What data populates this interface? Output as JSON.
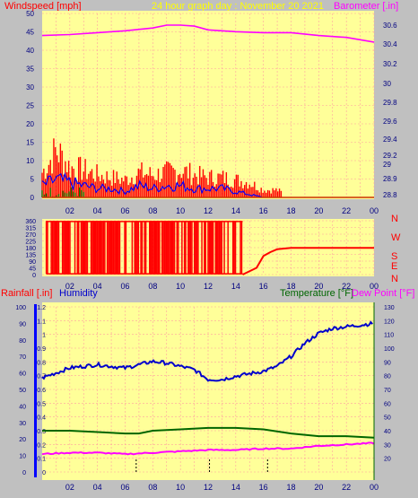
{
  "header": {
    "top_left": "Windspeed [mph]",
    "top_center": "24 hour graph day : November 20 2021",
    "top_right": "Barometer [.in]",
    "rain_label": "Rainfall [.in]",
    "humidity_label": "Humidity",
    "temp_label": "Temperature [°F]",
    "dew_label": "Dew Point [°F]"
  },
  "colors": {
    "plot_bg": "#ffff99",
    "frame_bg": "#c0c0c0",
    "grid": "#ffa0a0",
    "wind": "#ff0000",
    "gust": "#0000ff",
    "wind_green": "#008000",
    "barometer": "#ff00ff",
    "humidity": "#0000cc",
    "temperature": "#006600",
    "dewpoint": "#ff00ff",
    "rain": "#000000",
    "center_title": "#ffff00"
  },
  "x_axis": {
    "ticks": [
      "02",
      "04",
      "06",
      "08",
      "10",
      "12",
      "14",
      "16",
      "18",
      "20",
      "22",
      "00"
    ]
  },
  "chart_data": [
    {
      "type": "line",
      "name": "wind-barometer",
      "title": "24 hour graph day : November 20 2021",
      "x_range": [
        0,
        24
      ],
      "y_left": {
        "label": "Windspeed [mph]",
        "range": [
          0,
          50
        ],
        "ticks": [
          "0",
          "5",
          "10",
          "15",
          "20",
          "25",
          "30",
          "35",
          "40",
          "45",
          "50"
        ]
      },
      "y_right": {
        "label": "Barometer [.in]",
        "range": [
          28.8,
          30.8
        ],
        "ticks": [
          "28.8",
          "28.9",
          "29",
          "29.2",
          "29.4",
          "29.6",
          "29.8",
          "30",
          "30.2",
          "30.4",
          "30.6"
        ]
      },
      "series": [
        {
          "name": "Barometer",
          "axis": "right",
          "x": [
            0,
            2,
            4,
            6,
            8,
            9,
            10,
            11,
            12,
            14,
            16,
            18,
            20,
            22,
            24
          ],
          "y": [
            30.49,
            30.5,
            30.52,
            30.54,
            30.57,
            30.6,
            30.62,
            30.59,
            30.55,
            30.53,
            30.52,
            30.52,
            30.49,
            30.47,
            30.42
          ]
        },
        {
          "name": "Windspeed",
          "axis": "left",
          "x": [
            0,
            0.5,
            1,
            1.5,
            2,
            3,
            4,
            5,
            6,
            7,
            8,
            9,
            10,
            11,
            12,
            13,
            14,
            15,
            16,
            17,
            18,
            20,
            22,
            24
          ],
          "y": [
            10,
            14,
            19,
            16,
            12,
            11,
            9,
            8,
            7,
            10,
            9,
            10,
            11,
            9,
            8,
            8,
            7,
            6,
            3,
            3,
            0,
            0,
            0,
            0
          ]
        },
        {
          "name": "Gust",
          "axis": "left",
          "x": [
            0,
            1,
            2,
            3,
            4,
            5,
            6,
            7,
            8,
            9,
            10,
            11,
            12,
            13,
            14,
            15,
            16,
            18,
            24
          ],
          "y": [
            4,
            6,
            5,
            4,
            3,
            3,
            2,
            4,
            3,
            4,
            4,
            3,
            3,
            3,
            2,
            1,
            0,
            0,
            0
          ]
        }
      ]
    },
    {
      "type": "line",
      "name": "wind-direction",
      "x_range": [
        0,
        24
      ],
      "y_left": {
        "range": [
          0,
          360
        ],
        "ticks": [
          "0",
          "45",
          "90",
          "135",
          "180",
          "225",
          "270",
          "315",
          "360"
        ]
      },
      "y_right": {
        "ticks": [
          "N",
          "W",
          "S",
          "E",
          "N"
        ]
      },
      "series": [
        {
          "name": "Direction",
          "x": [
            0,
            14.5,
            15.5,
            16,
            16.5,
            17,
            18,
            24
          ],
          "y": [
            0,
            0,
            45,
            125,
            150,
            170,
            178,
            178
          ]
        }
      ]
    },
    {
      "type": "line",
      "name": "temp-humidity-rain",
      "x_range": [
        0,
        24
      ],
      "y_left": {
        "label": "Rainfall [.in]",
        "range": [
          0,
          1.2
        ],
        "ticks": [
          "0",
          "0.1",
          "0.2",
          "0.3",
          "0.4",
          "0.5",
          "0.6",
          "0.7",
          "0.8",
          "0.9",
          "1",
          "1.1",
          "1.2"
        ]
      },
      "y_humidity": {
        "label": "Humidity",
        "range": [
          0,
          100
        ],
        "ticks": [
          "0",
          "10",
          "20",
          "30",
          "40",
          "50",
          "60",
          "70",
          "80",
          "90",
          "100"
        ]
      },
      "y_right": {
        "label": "Temperature [°F]",
        "range": [
          10,
          130
        ],
        "ticks": [
          "20",
          "30",
          "40",
          "50",
          "60",
          "70",
          "80",
          "90",
          "100",
          "110",
          "120",
          "130"
        ]
      },
      "series": [
        {
          "name": "Humidity",
          "axis": "humidity",
          "x": [
            0,
            1,
            2,
            4,
            6,
            8,
            9,
            10,
            11,
            12,
            13,
            14,
            16,
            17,
            18,
            19,
            20,
            21,
            22,
            23,
            24
          ],
          "y": [
            57,
            60,
            63,
            65,
            63,
            67,
            66,
            64,
            62,
            56,
            56,
            58,
            61,
            64,
            70,
            78,
            84,
            87,
            88,
            89,
            90
          ]
        },
        {
          "name": "Temperature",
          "axis": "right",
          "x": [
            0,
            2,
            4,
            6,
            7,
            8,
            10,
            12,
            14,
            16,
            18,
            20,
            22,
            24
          ],
          "y": [
            40,
            40,
            39,
            38,
            38,
            40,
            41,
            42,
            42,
            41,
            38,
            36,
            36,
            35
          ]
        },
        {
          "name": "Dew Point",
          "axis": "right",
          "x": [
            0,
            2,
            4,
            6,
            8,
            10,
            12,
            14,
            16,
            18,
            20,
            22,
            24
          ],
          "y": [
            23,
            24,
            24,
            23,
            24,
            25,
            26,
            26,
            27,
            27,
            29,
            30,
            31
          ]
        },
        {
          "name": "Rainfall",
          "axis": "left",
          "x": [
            6.8,
            12.1,
            16.3
          ],
          "y": [
            0.04,
            0.04,
            0.04
          ]
        }
      ]
    }
  ]
}
